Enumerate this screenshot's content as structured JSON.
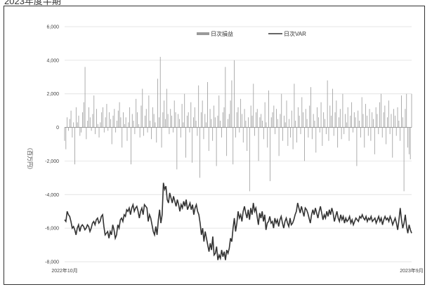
{
  "caption": "2023年度半期",
  "chart_data": {
    "type": "bar+line",
    "ylabel": "（百万円）",
    "ylim": [
      -8000,
      6000
    ],
    "yticks": [
      6000,
      4000,
      2000,
      0,
      -2000,
      -4000,
      -6000,
      -8000
    ],
    "ytick_labels": [
      "6,000",
      "4,000",
      "2,000",
      "0",
      "-2,000",
      "-4,000",
      "-6,000",
      "-8,000"
    ],
    "x_start_label": "2022年10月",
    "x_end_label": "2023年9月",
    "grid": true,
    "legend_position": "top-center",
    "series": [
      {
        "name": "日次損益",
        "type": "bar",
        "color": "#9a9a9a",
        "values": [
          -800,
          -1300,
          600,
          -200,
          500,
          1000,
          -600,
          300,
          -2200,
          1200,
          300,
          700,
          -500,
          -300,
          900,
          1500,
          3600,
          -700,
          400,
          1200,
          600,
          -200,
          800,
          1900,
          -400,
          1100,
          200,
          -600,
          300,
          900,
          1200,
          -300,
          600,
          1400,
          -200,
          900,
          500,
          -1000,
          700,
          1100,
          -300,
          400,
          1000,
          1500,
          600,
          -1200,
          900,
          200,
          600,
          -800,
          300,
          1200,
          -2200,
          800,
          400,
          -400,
          1700,
          900,
          200,
          -600,
          1300,
          2300,
          -500,
          700,
          1100,
          -300,
          1900,
          400,
          -700,
          1200,
          800,
          300,
          -900,
          2900,
          600,
          4200,
          -1200,
          900,
          1600,
          500,
          2300,
          800,
          -400,
          1100,
          700,
          -300,
          1600,
          900,
          -2500,
          800,
          500,
          -600,
          1400,
          300,
          2000,
          -1800,
          700,
          900,
          -300,
          1500,
          -2100,
          600,
          1200,
          400,
          -500,
          2500,
          -3000,
          900,
          1600,
          -700,
          800,
          300,
          2700,
          -1400,
          1100,
          500,
          -800,
          1300,
          600,
          -2300,
          700,
          1900,
          400,
          -600,
          900,
          1200,
          3600,
          -1700,
          500,
          800,
          1600,
          2800,
          -2200,
          4000,
          -600,
          900,
          1200,
          -300,
          1700,
          800,
          -900,
          1100,
          400,
          -1400,
          600,
          -3800,
          1300,
          700,
          2600,
          -500,
          900,
          1100,
          -2000,
          600,
          800,
          400,
          -700,
          1500,
          300,
          -1200,
          2200,
          -3200,
          600,
          900,
          1300,
          -400,
          1100,
          500,
          -1700,
          800,
          2000,
          -800,
          700,
          300,
          1600,
          -1100,
          500,
          -600,
          1000,
          -1300,
          2600,
          400,
          -900,
          1200,
          700,
          -400,
          1800,
          900,
          -2000,
          1100,
          500,
          -600,
          1300,
          2400,
          -700,
          800,
          400,
          -1500,
          1200,
          600,
          -300,
          1500,
          -1100,
          900,
          500,
          -400,
          2800,
          -800,
          1300,
          700,
          2300,
          -500,
          900,
          1600,
          -1200,
          600,
          1100,
          -700,
          2000,
          -400,
          800,
          300,
          1200,
          -800,
          700,
          1500,
          -300,
          900,
          600,
          -2300,
          1000,
          400,
          -600,
          1800,
          800,
          -1200,
          1400,
          700,
          -500,
          1100,
          -800,
          900,
          500,
          -1600,
          1200,
          800,
          -400,
          1500,
          2000,
          -600,
          900,
          1300,
          -1000,
          600,
          1600,
          -400,
          800,
          -1800,
          1100,
          700,
          -500,
          1200,
          400,
          -800,
          1900,
          600,
          -3800,
          1100,
          2000,
          -1200,
          -1600,
          -1900,
          2000
        ]
      },
      {
        "name": "日次VAR",
        "type": "line",
        "color": "#333333",
        "values": [
          -5500,
          -5600,
          -5000,
          -5200,
          -5300,
          -5600,
          -6000,
          -5900,
          -6100,
          -6400,
          -6000,
          -5800,
          -6200,
          -5900,
          -5800,
          -5900,
          -6100,
          -6000,
          -5800,
          -5900,
          -6200,
          -6000,
          -5700,
          -5600,
          -5800,
          -5500,
          -5400,
          -5700,
          -5600,
          -5300,
          -5200,
          -5900,
          -6400,
          -6300,
          -6200,
          -6600,
          -6200,
          -6400,
          -5800,
          -6100,
          -6600,
          -6400,
          -5800,
          -6000,
          -5500,
          -5400,
          -5600,
          -5200,
          -5300,
          -4900,
          -5000,
          -4800,
          -5200,
          -4800,
          -4600,
          -5000,
          -4800,
          -4700,
          -5000,
          -5400,
          -5000,
          -4800,
          -5200,
          -4600,
          -4700,
          -4800,
          -5600,
          -5200,
          -5400,
          -5800,
          -6200,
          -6400,
          -5900,
          -6400,
          -5500,
          -4900,
          -5700,
          -5200,
          -3300,
          -3700,
          -3500,
          -4300,
          -4500,
          -3900,
          -4200,
          -4500,
          -4100,
          -4400,
          -4700,
          -4300,
          -4600,
          -5000,
          -4600,
          -4800,
          -4400,
          -4700,
          -4300,
          -4900,
          -4700,
          -4500,
          -4900,
          -4600,
          -5200,
          -4800,
          -4600,
          -5000,
          -5200,
          -5700,
          -6400,
          -6000,
          -6800,
          -6200,
          -6600,
          -7000,
          -7400,
          -6900,
          -7300,
          -6500,
          -7600,
          -7500,
          -7100,
          -7900,
          -7600,
          -7800,
          -7300,
          -7700,
          -7400,
          -7900,
          -7300,
          -7500,
          -7200,
          -6600,
          -6800,
          -6000,
          -5400,
          -6200,
          -5700,
          -5000,
          -5400,
          -5200,
          -5600,
          -5000,
          -4700,
          -5100,
          -5400,
          -4900,
          -5500,
          -4800,
          -5200,
          -4500,
          -5000,
          -4800,
          -5300,
          -5800,
          -5100,
          -5400,
          -5000,
          -5600,
          -5200,
          -6100,
          -5700,
          -5600,
          -5300,
          -5700,
          -5600,
          -6000,
          -5400,
          -5700,
          -5500,
          -5900,
          -5500,
          -5300,
          -5700,
          -6000,
          -5600,
          -5400,
          -5700,
          -5900,
          -5400,
          -5800,
          -5700,
          -5500,
          -5200,
          -5000,
          -4500,
          -4800,
          -5100,
          -4700,
          -5000,
          -5300,
          -4800,
          -4900,
          -5100,
          -5400,
          -5700,
          -5200,
          -4900,
          -5200,
          -4800,
          -5100,
          -5400,
          -5000,
          -4700,
          -5100,
          -5500,
          -5200,
          -5400,
          -5000,
          -5300,
          -4900,
          -5200,
          -4800,
          -5100,
          -5600,
          -5300,
          -5000,
          -5400,
          -5600,
          -5200,
          -5500,
          -5300,
          -5700,
          -5400,
          -5600,
          -5500,
          -5300,
          -5700,
          -5500,
          -5800,
          -5600,
          -5400,
          -5500,
          -5600,
          -5300,
          -5400,
          -5200,
          -5400,
          -5500,
          -5300,
          -5600,
          -5400,
          -5500,
          -5300,
          -5600,
          -5500,
          -5400,
          -5700,
          -5500,
          -5300,
          -5600,
          -5400,
          -5800,
          -5500,
          -5300,
          -5500,
          -5400,
          -5600,
          -5300,
          -5500,
          -5800,
          -5600,
          -5400,
          -5700,
          -6100,
          -5500,
          -4800,
          -5500,
          -6000,
          -5700,
          -5200,
          -5900,
          -6300,
          -5800,
          -6100,
          -6300
        ]
      }
    ]
  }
}
